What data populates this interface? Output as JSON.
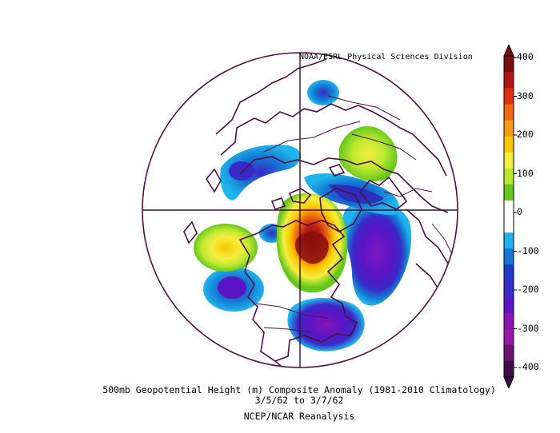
{
  "map": {
    "credit": "NOAA/ESRL Physical Sciences Division",
    "projection": "north-polar-stereographic",
    "caption_line1": "500mb Geopotential Height (m) Composite Anomaly (1981-2010 Climatology)",
    "caption_line2": "3/5/62   to 3/7/62",
    "caption_line3": "NCEP/NCAR Reanalysis",
    "boundary_color": "#4a1040",
    "grid_color": "#3a0a30"
  },
  "colorbar": {
    "ticks": [
      "400",
      "300",
      "200",
      "100",
      "0",
      "-100",
      "-200",
      "-300",
      "-400"
    ],
    "colors": [
      "#7a0f0f",
      "#b01818",
      "#e03010",
      "#f06a10",
      "#f59a14",
      "#f5c800",
      "#f5ee40",
      "#bde830",
      "#66c81c",
      "#ffffff",
      "#ffffff",
      "#20b4ec",
      "#1478d2",
      "#1e3cc4",
      "#3a28c8",
      "#5a14c6",
      "#8a14b4",
      "#9a18a8",
      "#6a1470",
      "#3e0c46"
    ]
  },
  "anomalies": [
    {
      "label": "positive-anomaly-pacific",
      "value": "+ over North Pacific"
    },
    {
      "label": "positive-anomaly-arctic-canada",
      "value": "max over northern Canada / Arctic"
    },
    {
      "label": "positive-anomaly-siberia",
      "value": "+ over Siberia"
    },
    {
      "label": "negative-anomaly-north-atlantic",
      "value": "min over North Atlantic"
    },
    {
      "label": "negative-anomaly-eastern-us",
      "value": "- over eastern United States"
    }
  ]
}
